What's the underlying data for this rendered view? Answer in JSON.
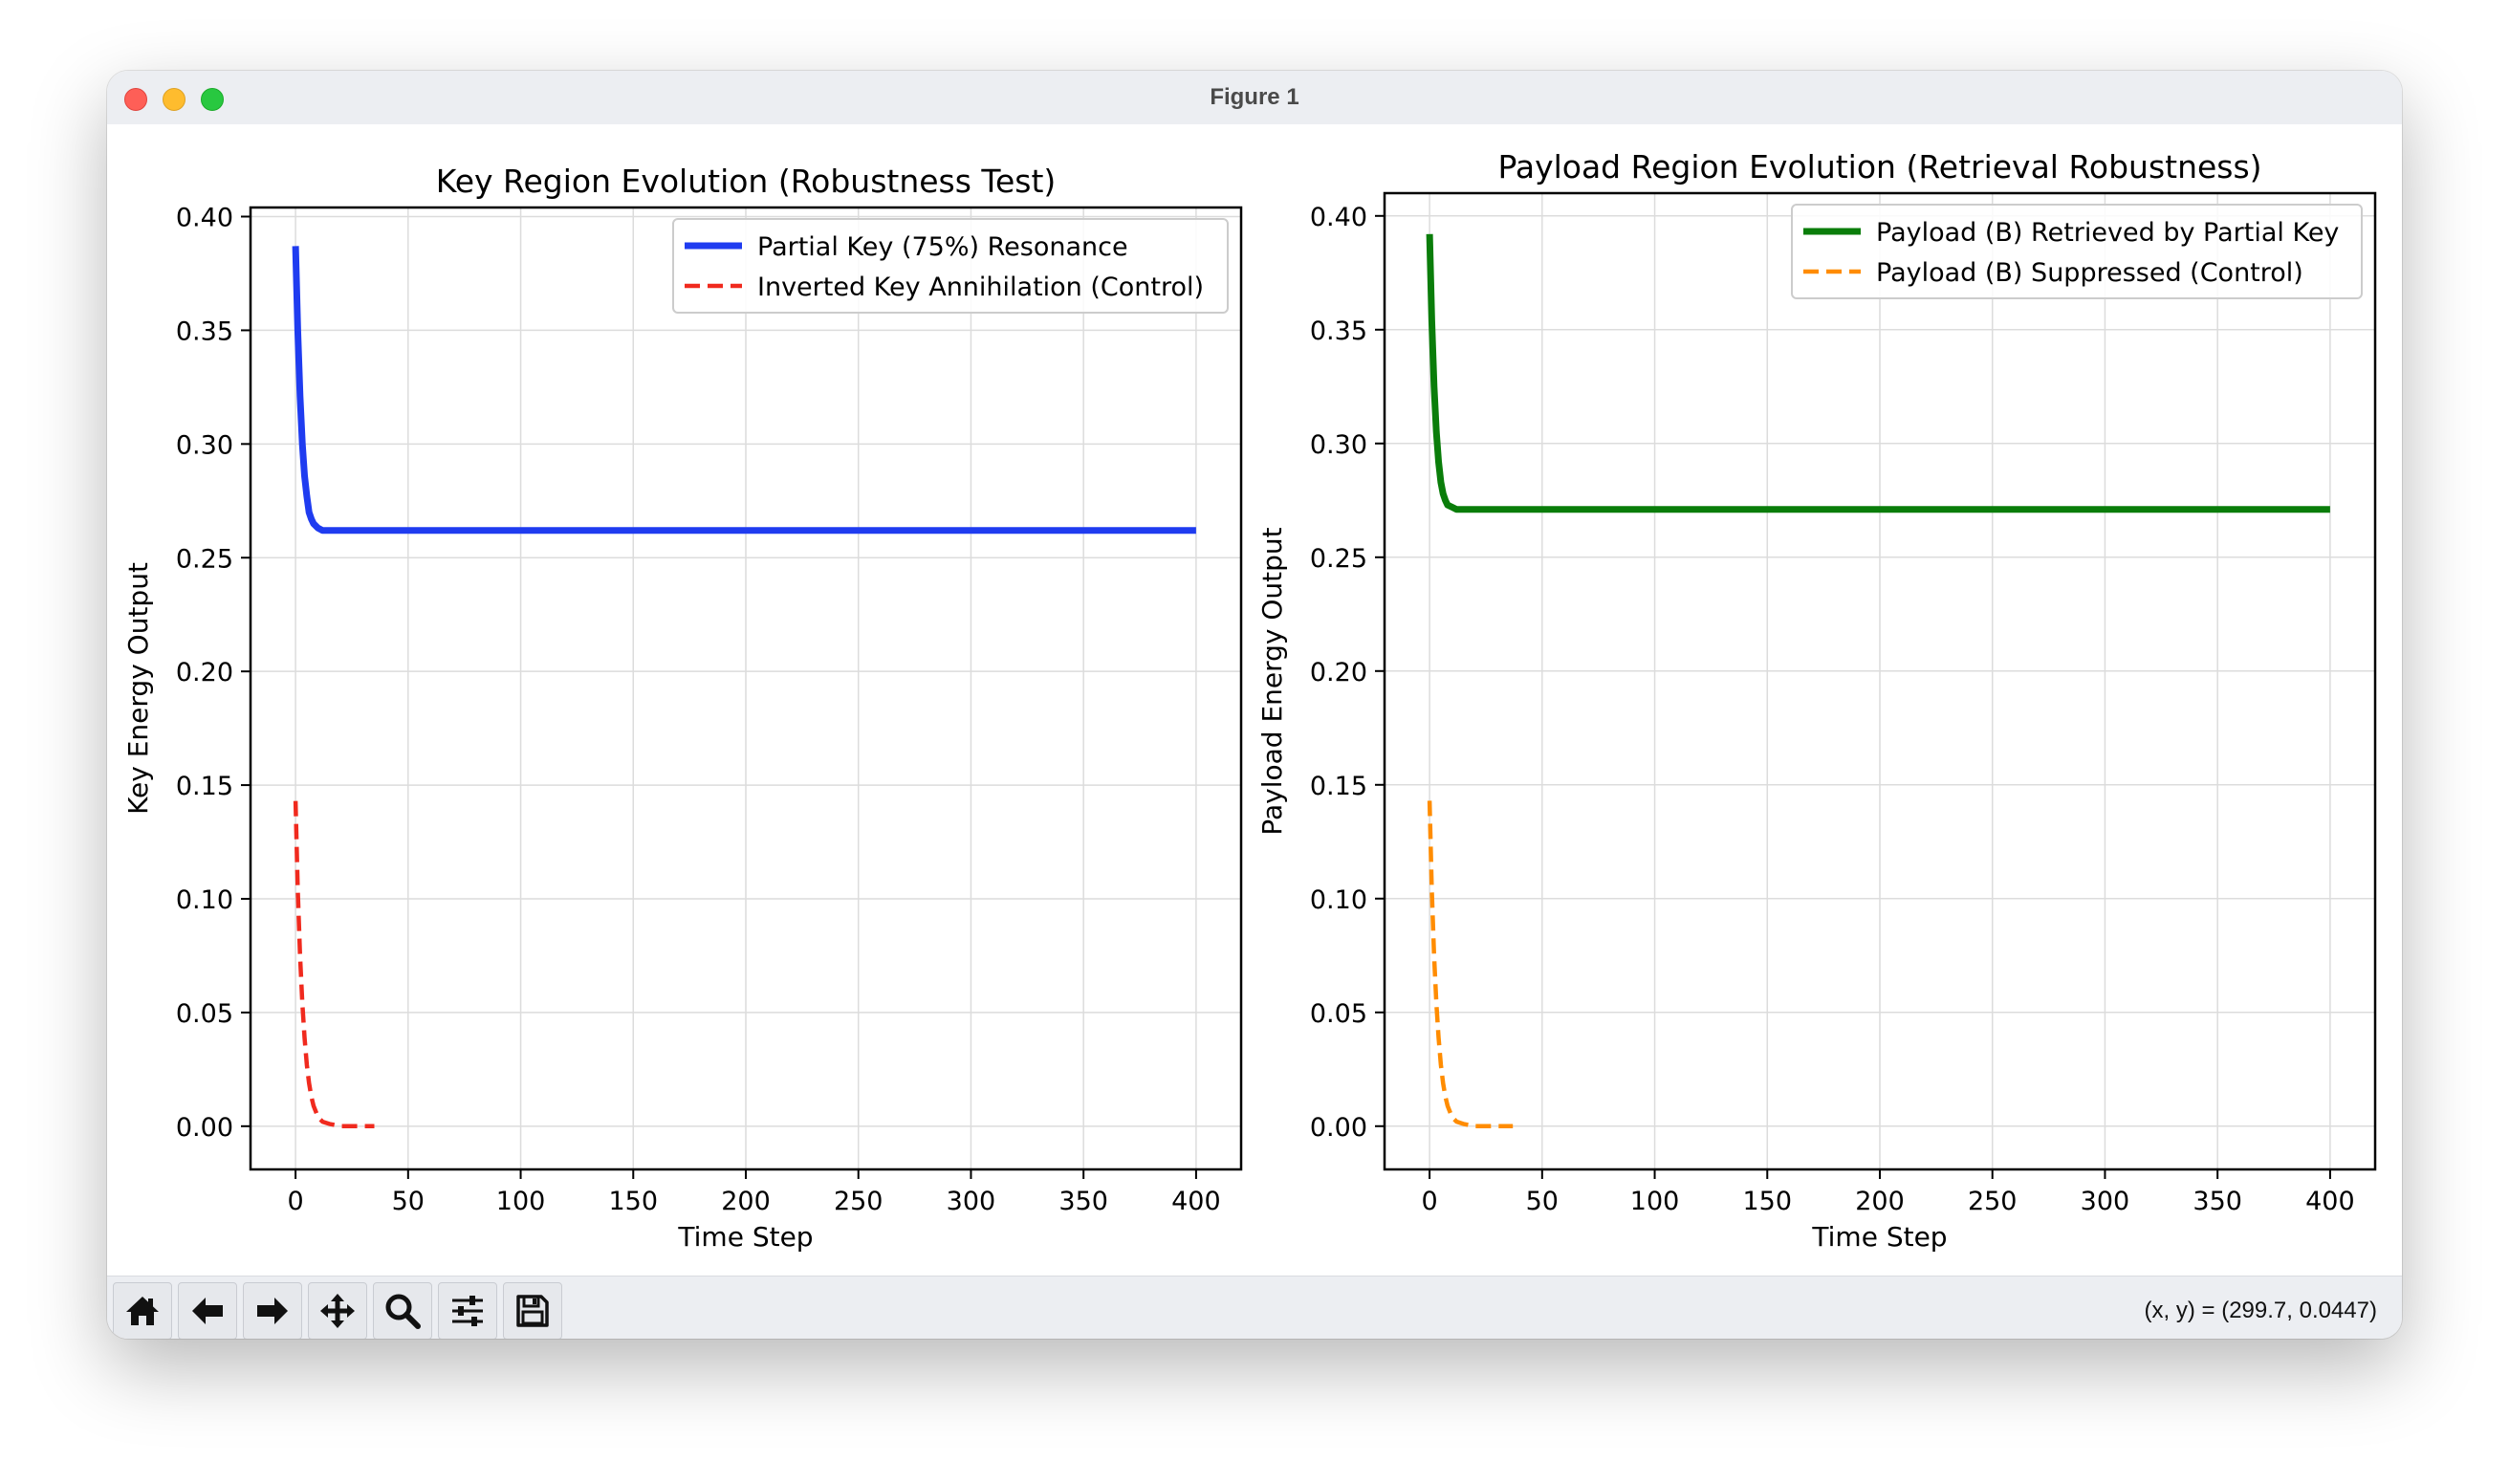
{
  "window": {
    "title": "Figure 1"
  },
  "toolbar": {
    "buttons": [
      {
        "name": "home-button",
        "icon": "home-icon"
      },
      {
        "name": "back-button",
        "icon": "arrow-left-icon"
      },
      {
        "name": "forward-button",
        "icon": "arrow-right-icon"
      },
      {
        "name": "pan-button",
        "icon": "move-icon"
      },
      {
        "name": "zoom-button",
        "icon": "magnifier-icon"
      },
      {
        "name": "configure-subplots-button",
        "icon": "sliders-icon"
      },
      {
        "name": "save-button",
        "icon": "floppy-disk-icon"
      }
    ],
    "coords_text": "(x, y) = (299.7, 0.0447)"
  },
  "chart_data": [
    {
      "type": "line",
      "title": "Key Region Evolution (Robustness Test)",
      "xlabel": "Time Step",
      "ylabel": "Key Energy Output",
      "xlim": [
        -20,
        420
      ],
      "ylim": [
        -0.019,
        0.404
      ],
      "xticks": [
        0,
        50,
        100,
        150,
        200,
        250,
        300,
        350,
        400
      ],
      "yticks": [
        0.0,
        0.05,
        0.1,
        0.15,
        0.2,
        0.25,
        0.3,
        0.35,
        0.4
      ],
      "grid": true,
      "legend": "top-right",
      "series": [
        {
          "name": "Partial Key (75%) Resonance",
          "color": "#1f3cf0",
          "style": "solid",
          "x": [
            0,
            1,
            2,
            3,
            4,
            5,
            6,
            7,
            8,
            10,
            12,
            15,
            20,
            30,
            50,
            100,
            200,
            300,
            400
          ],
          "y": [
            0.387,
            0.35,
            0.321,
            0.3,
            0.286,
            0.277,
            0.27,
            0.267,
            0.265,
            0.263,
            0.262,
            0.262,
            0.262,
            0.262,
            0.262,
            0.262,
            0.262,
            0.262,
            0.262
          ]
        },
        {
          "name": "Inverted Key Annihilation (Control)",
          "color": "#f02a1e",
          "style": "dashed",
          "x": [
            0,
            1,
            2,
            3,
            4,
            5,
            6,
            7,
            8,
            10,
            12,
            15,
            20,
            25,
            30,
            35
          ],
          "y": [
            0.143,
            0.104,
            0.075,
            0.054,
            0.039,
            0.027,
            0.019,
            0.013,
            0.009,
            0.004,
            0.002,
            0.001,
            0.0,
            0.0,
            0.0,
            0.0
          ]
        }
      ]
    },
    {
      "type": "line",
      "title": "Payload Region Evolution (Retrieval Robustness)",
      "xlabel": "Time Step",
      "ylabel": "Payload Energy Output",
      "xlim": [
        -20,
        420
      ],
      "ylim": [
        -0.019,
        0.41
      ],
      "xticks": [
        0,
        50,
        100,
        150,
        200,
        250,
        300,
        350,
        400
      ],
      "yticks": [
        0.0,
        0.05,
        0.1,
        0.15,
        0.2,
        0.25,
        0.3,
        0.35,
        0.4
      ],
      "grid": true,
      "legend": "top-right",
      "series": [
        {
          "name": "Payload (B) Retrieved by Partial Key",
          "color": "#0a7d0a",
          "style": "solid",
          "x": [
            0,
            1,
            2,
            3,
            4,
            5,
            6,
            7,
            8,
            10,
            12,
            15,
            20,
            30,
            50,
            100,
            200,
            300,
            400
          ],
          "y": [
            0.392,
            0.354,
            0.325,
            0.305,
            0.292,
            0.283,
            0.278,
            0.275,
            0.273,
            0.272,
            0.271,
            0.271,
            0.271,
            0.271,
            0.271,
            0.271,
            0.271,
            0.271,
            0.271
          ]
        },
        {
          "name": "Payload (B) Suppressed (Control)",
          "color": "#ff8c00",
          "style": "dashed",
          "x": [
            0,
            1,
            2,
            3,
            4,
            5,
            6,
            7,
            8,
            10,
            12,
            15,
            20,
            25,
            30,
            35,
            37
          ],
          "y": [
            0.143,
            0.104,
            0.075,
            0.054,
            0.039,
            0.027,
            0.019,
            0.013,
            0.009,
            0.004,
            0.002,
            0.001,
            0.0,
            0.0,
            0.0,
            0.0,
            0.0
          ]
        }
      ]
    }
  ]
}
